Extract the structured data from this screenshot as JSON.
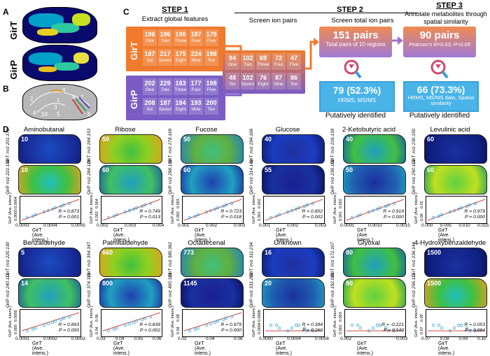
{
  "panels": {
    "A": "A",
    "B": "B",
    "C": "C",
    "D": "D"
  },
  "panelA": {
    "rows": [
      "GirT",
      "GirP"
    ]
  },
  "panelB": {
    "region_numbers": [
      "9",
      "2",
      "8",
      "1",
      "3",
      "4",
      "10",
      "5",
      "6",
      "7"
    ]
  },
  "step1": {
    "title": "STEP 1",
    "subtitle": "Extract global features",
    "girT_label": "GirT",
    "girP_label": "GirP",
    "girT": [
      {
        "n": "196",
        "t": "One"
      },
      {
        "n": "196",
        "t": "Two"
      },
      {
        "n": "190",
        "t": "Three"
      },
      {
        "n": "187",
        "t": "Four"
      },
      {
        "n": "179",
        "t": "Five"
      },
      {
        "n": "187",
        "t": "Six"
      },
      {
        "n": "217",
        "t": "Seven"
      },
      {
        "n": "175",
        "t": "Eight"
      },
      {
        "n": "224",
        "t": "Nine"
      },
      {
        "n": "198",
        "t": "Ten"
      }
    ],
    "girP": [
      {
        "n": "202",
        "t": "One"
      },
      {
        "n": "229",
        "t": "Two"
      },
      {
        "n": "183",
        "t": "Three"
      },
      {
        "n": "177",
        "t": "Four"
      },
      {
        "n": "198",
        "t": "Five"
      },
      {
        "n": "208",
        "t": "Six"
      },
      {
        "n": "187",
        "t": "Seven"
      },
      {
        "n": "184",
        "t": "Eight"
      },
      {
        "n": "193",
        "t": "Nine"
      },
      {
        "n": "200",
        "t": "Ten"
      }
    ]
  },
  "step2": {
    "title": "STEP 2",
    "subtitle1": "Screen ion pairs",
    "subtitle2": "Screen total ion pairs",
    "pairs": [
      {
        "n": "94",
        "t": "One"
      },
      {
        "n": "102",
        "t": "Two"
      },
      {
        "n": "69",
        "t": "Three"
      },
      {
        "n": "72",
        "t": "Four"
      },
      {
        "n": "47",
        "t": "Five"
      },
      {
        "n": "48",
        "t": "Six"
      },
      {
        "n": "102",
        "t": "Seven"
      },
      {
        "n": "76",
        "t": "Eight"
      },
      {
        "n": "87",
        "t": "Nine"
      },
      {
        "n": "86",
        "t": "Ten"
      }
    ],
    "total_pairs": "151 pairs",
    "total_sub": "Total pairs of 10 regions",
    "identified": "79 (52.3%)",
    "identified_sub": "HRMS, MS/MS",
    "footer": "Putatively identified"
  },
  "step3": {
    "title": "STEP 3",
    "subtitle": "Annotate metabolites through spatial similarity",
    "pairs": "90 pairs",
    "pairs_sub": "Pearson's R>0.63, P<0.05",
    "identified": "66 (73.3%)",
    "identified_sub": "HRMS, MS/MS data, Spatial similarity",
    "footer": "Putatively identified"
  },
  "panelD": {
    "xlabel": "GirT (Ave. intens.)",
    "ylabel": "GirP (Ave. intens.)",
    "ions": [
      {
        "name": "Aminobutanal",
        "t_num": "10",
        "p_num": "10",
        "t_mz": "m/z 201.170",
        "p_mz": "m/z 221.138",
        "R": "R = 0.873",
        "P": "P = 0.001",
        "xticks": [
          "0.0003",
          "0.0004",
          "0.0005"
        ],
        "yticks": [
          "0.0003",
          "0.0004"
        ]
      },
      {
        "name": "Ribose",
        "t_num": "50",
        "p_num": "60",
        "t_mz": "m/z 264.153",
        "p_mz": "m/z 284.126",
        "R": "R = 0.749",
        "P": "P = 0.013",
        "xticks": [
          "0.002",
          "0.003",
          "0.004"
        ],
        "yticks": [
          "0.002",
          "0.004"
        ]
      },
      {
        "name": "Fucose",
        "t_num": "50",
        "p_num": "60",
        "t_mz": "m/z 278.169",
        "p_mz": "m/z 298.138",
        "R": "R = 0.723",
        "P": "P = 0.018",
        "xticks": [
          "0.001",
          "0.002",
          "0.003"
        ],
        "yticks": [
          "0.002",
          "0.003"
        ]
      },
      {
        "name": "Glucose",
        "t_num": "40",
        "p_num": "55",
        "t_mz": "m/z 294.166",
        "p_mz": "m/z 314.140",
        "R": "R = 0.852",
        "P": "P = 0.002",
        "xticks": [
          "0.001",
          "0.002",
          "0.003"
        ],
        "yticks": [
          "0.001",
          "0.002"
        ]
      },
      {
        "name": "2-Ketobutyric acid",
        "t_num": "40",
        "p_num": "50",
        "t_mz": "m/z 216.139",
        "p_mz": "m/z 236.108",
        "R": "R = 0.919",
        "P": "P = 0.000",
        "xticks": [
          "0.0005",
          "0.0010",
          "0.0015"
        ],
        "yticks": [
          "0.001",
          "0.002"
        ]
      },
      {
        "name": "Levulinic acid",
        "t_num": "60",
        "p_num": "60",
        "t_mz": "m/z 230.150",
        "p_mz": "m/z 250.118",
        "R": "R = 0.979",
        "P": "P = 0.000",
        "xticks": [
          "0.000",
          "0.005",
          "0.010",
          "0.015"
        ],
        "yticks": [
          "0.00",
          "0.02"
        ]
      },
      {
        "name": "Benzaldehyde",
        "t_num": "5",
        "p_num": "14",
        "t_mz": "m/z 220.130",
        "p_mz": "m/z 240.111",
        "R": "R = 0.893",
        "P": "P = 0.000",
        "xticks": [
          "0.0001",
          "0.0002",
          "0.0003"
        ],
        "yticks": [
          "0.000",
          "0.0005"
        ]
      },
      {
        "name": "Palmitaldehyde",
        "t_num": "660",
        "p_num": "800",
        "t_mz": "m/z 354.347",
        "p_mz": "m/z 374.316",
        "R": "R = 0.839",
        "P": "P = 0.002",
        "xticks": [
          "0.03",
          "0.04",
          "0.05",
          "0.06"
        ],
        "yticks": [
          "0.04",
          "0.06"
        ]
      },
      {
        "name": "Octadecenal",
        "t_num": "773",
        "p_num": "1145",
        "t_mz": "m/z 380.362",
        "p_mz": "m/z 400.331",
        "R": "R = 0.979",
        "P": "P = 0.000",
        "xticks": [
          "0.02",
          "0.04",
          "0.06"
        ],
        "yticks": [
          "0.04",
          "0.08"
        ]
      },
      {
        "name": "Unknown",
        "t_num": "16",
        "p_num": "20",
        "t_mz": "m/z 311.234",
        "p_mz": "m/z 331.200",
        "R": "R = 0.394",
        "P": "P = 0.260",
        "xticks": [
          "0.0000",
          "0.0004",
          "0.0008"
        ],
        "yticks": [
          "0.0004",
          "0.0008"
        ]
      },
      {
        "name": "Glyoxal",
        "t_num": "80",
        "p_num": "80",
        "t_mz": "m/z 172.107",
        "p_mz": "m/z 192.080",
        "R": "R = -0.221",
        "P": "P = 0.540",
        "xticks": [
          "0.002",
          "0.003"
        ],
        "yticks": [
          "0.002",
          "0.003"
        ]
      },
      {
        "name": "4-Hydroxybenzaldehyde",
        "t_num": "1500",
        "p_num": "1500",
        "t_mz": "m/z 236.144",
        "p_mz": "m/z 256.111",
        "R": "R = 0.053",
        "P": "P = 0.884",
        "xticks": [
          "0.07",
          "0.08",
          "0.09",
          "0.10"
        ],
        "yticks": [
          "0.07",
          "0.09"
        ]
      }
    ]
  },
  "colors": {
    "orange": "#f07a2e",
    "purple": "#7b5cc4",
    "blue": "#3aa6e0",
    "fit": "#d64a3a"
  }
}
